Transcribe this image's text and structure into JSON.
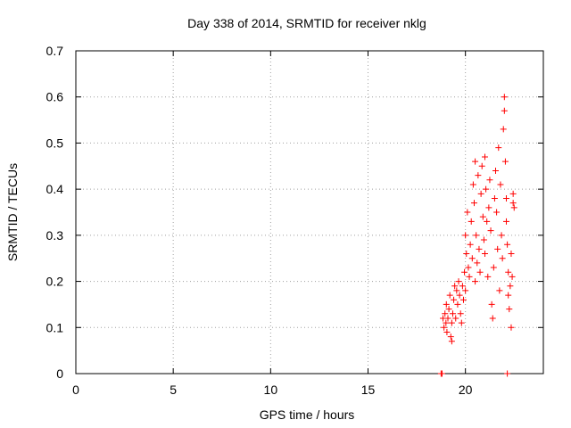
{
  "chart_data": {
    "type": "scatter",
    "title": "Day 338 of 2014, SRMTID for receiver nklg",
    "xlabel": "GPS time / hours",
    "ylabel": "SRMTID / TECUs",
    "xlim": [
      0,
      24
    ],
    "ylim": [
      0,
      0.7
    ],
    "grid": true,
    "x_ticks": [
      0,
      5,
      10,
      15,
      20
    ],
    "x_tick_labels": [
      "0",
      "5",
      "10",
      "15",
      "20"
    ],
    "y_ticks": [
      0,
      0.1,
      0.2,
      0.3,
      0.4,
      0.5,
      0.6,
      0.7
    ],
    "y_tick_labels": [
      "0",
      "0.1",
      "0.2",
      "0.3",
      "0.4",
      "0.5",
      "0.6",
      "0.7"
    ],
    "marker": "+",
    "color": "#ff0000",
    "series": [
      {
        "name": "SRMTID",
        "points": [
          [
            18.75,
            0.0
          ],
          [
            18.8,
            0.0
          ],
          [
            22.15,
            0.0
          ],
          [
            18.85,
            0.12
          ],
          [
            18.9,
            0.1
          ],
          [
            18.95,
            0.13
          ],
          [
            19.0,
            0.11
          ],
          [
            19.02,
            0.15
          ],
          [
            19.05,
            0.09
          ],
          [
            19.1,
            0.12
          ],
          [
            19.15,
            0.14
          ],
          [
            19.2,
            0.17
          ],
          [
            19.25,
            0.08
          ],
          [
            19.3,
            0.07
          ],
          [
            19.3,
            0.11
          ],
          [
            19.35,
            0.13
          ],
          [
            19.4,
            0.16
          ],
          [
            19.45,
            0.19
          ],
          [
            19.5,
            0.12
          ],
          [
            19.55,
            0.18
          ],
          [
            19.6,
            0.15
          ],
          [
            19.65,
            0.2
          ],
          [
            19.7,
            0.17
          ],
          [
            19.75,
            0.13
          ],
          [
            19.8,
            0.11
          ],
          [
            19.85,
            0.19
          ],
          [
            19.9,
            0.16
          ],
          [
            19.95,
            0.22
          ],
          [
            20.0,
            0.18
          ],
          [
            20.0,
            0.3
          ],
          [
            20.05,
            0.26
          ],
          [
            20.1,
            0.35
          ],
          [
            20.15,
            0.23
          ],
          [
            20.2,
            0.21
          ],
          [
            20.25,
            0.28
          ],
          [
            20.3,
            0.33
          ],
          [
            20.35,
            0.25
          ],
          [
            20.4,
            0.41
          ],
          [
            20.45,
            0.37
          ],
          [
            20.5,
            0.46
          ],
          [
            20.5,
            0.2
          ],
          [
            20.55,
            0.3
          ],
          [
            20.6,
            0.24
          ],
          [
            20.65,
            0.43
          ],
          [
            20.7,
            0.27
          ],
          [
            20.75,
            0.22
          ],
          [
            20.8,
            0.39
          ],
          [
            20.85,
            0.45
          ],
          [
            20.9,
            0.34
          ],
          [
            20.95,
            0.29
          ],
          [
            21.0,
            0.47
          ],
          [
            21.0,
            0.26
          ],
          [
            21.05,
            0.4
          ],
          [
            21.1,
            0.33
          ],
          [
            21.15,
            0.21
          ],
          [
            21.2,
            0.36
          ],
          [
            21.25,
            0.42
          ],
          [
            21.3,
            0.31
          ],
          [
            21.35,
            0.15
          ],
          [
            21.4,
            0.12
          ],
          [
            21.45,
            0.23
          ],
          [
            21.5,
            0.38
          ],
          [
            21.55,
            0.44
          ],
          [
            21.6,
            0.35
          ],
          [
            21.65,
            0.27
          ],
          [
            21.7,
            0.49
          ],
          [
            21.75,
            0.18
          ],
          [
            21.8,
            0.41
          ],
          [
            21.85,
            0.3
          ],
          [
            21.9,
            0.25
          ],
          [
            21.95,
            0.53
          ],
          [
            22.0,
            0.57
          ],
          [
            22.0,
            0.6
          ],
          [
            22.05,
            0.46
          ],
          [
            22.1,
            0.38
          ],
          [
            22.1,
            0.33
          ],
          [
            22.15,
            0.28
          ],
          [
            22.2,
            0.22
          ],
          [
            22.2,
            0.17
          ],
          [
            22.25,
            0.14
          ],
          [
            22.3,
            0.19
          ],
          [
            22.35,
            0.1
          ],
          [
            22.35,
            0.26
          ],
          [
            22.4,
            0.21
          ],
          [
            22.45,
            0.37
          ],
          [
            22.45,
            0.39
          ],
          [
            22.5,
            0.36
          ]
        ]
      }
    ]
  }
}
